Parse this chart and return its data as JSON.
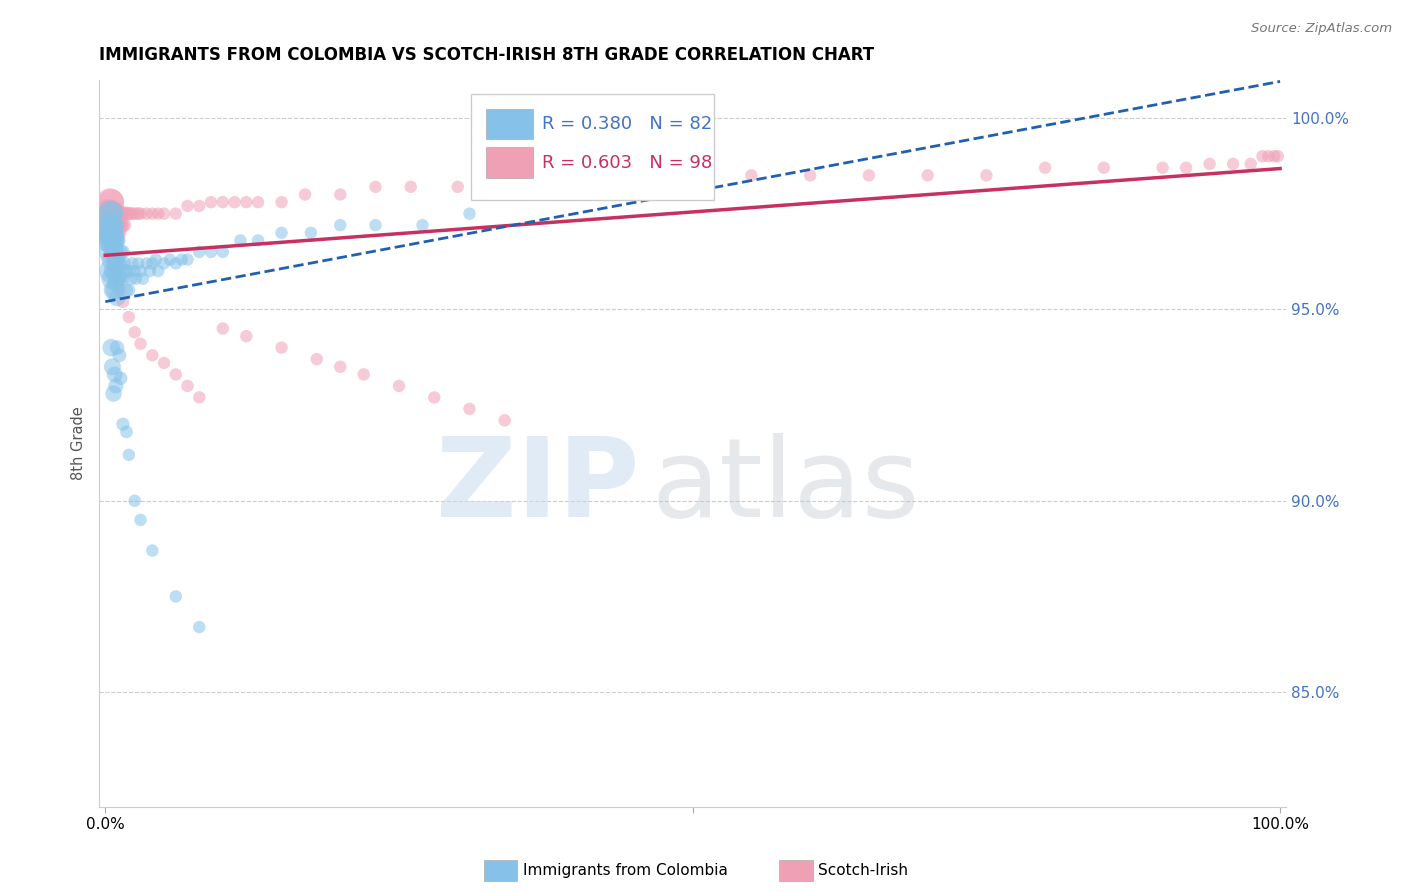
{
  "title": "IMMIGRANTS FROM COLOMBIA VS SCOTCH-IRISH 8TH GRADE CORRELATION CHART",
  "source": "Source: ZipAtlas.com",
  "ylabel": "8th Grade",
  "ytick_labels": [
    "85.0%",
    "90.0%",
    "95.0%",
    "100.0%"
  ],
  "ytick_values": [
    0.85,
    0.9,
    0.95,
    1.0
  ],
  "xlim": [
    0.0,
    1.0
  ],
  "ylim": [
    0.82,
    1.01
  ],
  "legend_blue_r": "R = 0.380",
  "legend_blue_n": "N = 82",
  "legend_pink_r": "R = 0.603",
  "legend_pink_n": "N = 98",
  "blue_color": "#85C1E8",
  "pink_color": "#F0A0B5",
  "blue_line_color": "#2060B0",
  "pink_line_color": "#C83060",
  "background_color": "#FFFFFF",
  "bottom_label_blue": "Immigrants from Colombia",
  "bottom_label_pink": "Scotch-Irish",
  "blue_x": [
    0.003,
    0.004,
    0.004,
    0.004,
    0.005,
    0.005,
    0.005,
    0.005,
    0.005,
    0.006,
    0.006,
    0.006,
    0.006,
    0.007,
    0.007,
    0.007,
    0.007,
    0.008,
    0.008,
    0.008,
    0.009,
    0.009,
    0.009,
    0.01,
    0.01,
    0.01,
    0.01,
    0.012,
    0.012,
    0.013,
    0.014,
    0.015,
    0.015,
    0.016,
    0.018,
    0.018,
    0.02,
    0.02,
    0.022,
    0.023,
    0.025,
    0.026,
    0.028,
    0.03,
    0.032,
    0.035,
    0.038,
    0.04,
    0.043,
    0.045,
    0.05,
    0.055,
    0.06,
    0.065,
    0.07,
    0.08,
    0.09,
    0.1,
    0.115,
    0.13,
    0.15,
    0.175,
    0.2,
    0.23,
    0.27,
    0.31,
    0.005,
    0.006,
    0.007,
    0.008,
    0.009,
    0.01,
    0.012,
    0.013,
    0.015,
    0.018,
    0.02,
    0.025,
    0.03,
    0.04,
    0.06,
    0.08
  ],
  "blue_y": [
    0.97,
    0.975,
    0.968,
    0.972,
    0.975,
    0.97,
    0.965,
    0.96,
    0.968,
    0.972,
    0.967,
    0.963,
    0.958,
    0.97,
    0.965,
    0.96,
    0.955,
    0.965,
    0.96,
    0.955,
    0.968,
    0.962,
    0.957,
    0.968,
    0.963,
    0.958,
    0.953,
    0.962,
    0.958,
    0.965,
    0.96,
    0.965,
    0.958,
    0.962,
    0.96,
    0.955,
    0.96,
    0.955,
    0.958,
    0.962,
    0.96,
    0.958,
    0.962,
    0.96,
    0.958,
    0.962,
    0.96,
    0.962,
    0.963,
    0.96,
    0.962,
    0.963,
    0.962,
    0.963,
    0.963,
    0.965,
    0.965,
    0.965,
    0.968,
    0.968,
    0.97,
    0.97,
    0.972,
    0.972,
    0.972,
    0.975,
    0.94,
    0.935,
    0.928,
    0.933,
    0.93,
    0.94,
    0.938,
    0.932,
    0.92,
    0.918,
    0.912,
    0.9,
    0.895,
    0.887,
    0.875,
    0.867
  ],
  "blue_sizes": [
    400,
    350,
    350,
    350,
    300,
    300,
    300,
    300,
    300,
    250,
    250,
    250,
    250,
    200,
    200,
    200,
    200,
    180,
    180,
    180,
    160,
    160,
    160,
    150,
    150,
    150,
    150,
    120,
    120,
    110,
    110,
    100,
    100,
    100,
    90,
    90,
    90,
    90,
    85,
    85,
    80,
    80,
    80,
    80,
    80,
    80,
    80,
    80,
    80,
    80,
    80,
    80,
    80,
    80,
    80,
    80,
    80,
    80,
    80,
    80,
    80,
    80,
    80,
    80,
    80,
    80,
    160,
    150,
    140,
    130,
    120,
    110,
    100,
    95,
    90,
    85,
    80,
    80,
    80,
    80,
    80,
    80
  ],
  "pink_x": [
    0.003,
    0.004,
    0.004,
    0.004,
    0.005,
    0.005,
    0.005,
    0.005,
    0.006,
    0.006,
    0.006,
    0.007,
    0.007,
    0.007,
    0.008,
    0.008,
    0.009,
    0.009,
    0.01,
    0.01,
    0.01,
    0.012,
    0.012,
    0.013,
    0.014,
    0.015,
    0.016,
    0.018,
    0.02,
    0.022,
    0.025,
    0.028,
    0.03,
    0.035,
    0.04,
    0.045,
    0.05,
    0.06,
    0.07,
    0.08,
    0.09,
    0.1,
    0.11,
    0.12,
    0.13,
    0.15,
    0.17,
    0.2,
    0.23,
    0.26,
    0.3,
    0.35,
    0.4,
    0.45,
    0.5,
    0.55,
    0.6,
    0.65,
    0.7,
    0.75,
    0.8,
    0.85,
    0.9,
    0.92,
    0.94,
    0.96,
    0.975,
    0.985,
    0.99,
    0.995,
    0.998,
    0.004,
    0.005,
    0.006,
    0.007,
    0.008,
    0.009,
    0.01,
    0.012,
    0.015,
    0.02,
    0.025,
    0.03,
    0.04,
    0.05,
    0.06,
    0.07,
    0.08,
    0.1,
    0.12,
    0.15,
    0.18,
    0.2,
    0.22,
    0.25,
    0.28,
    0.31,
    0.34
  ],
  "pink_y": [
    0.975,
    0.978,
    0.975,
    0.972,
    0.978,
    0.975,
    0.972,
    0.97,
    0.975,
    0.972,
    0.97,
    0.975,
    0.972,
    0.97,
    0.975,
    0.972,
    0.975,
    0.972,
    0.975,
    0.972,
    0.97,
    0.975,
    0.972,
    0.975,
    0.972,
    0.975,
    0.972,
    0.975,
    0.975,
    0.975,
    0.975,
    0.975,
    0.975,
    0.975,
    0.975,
    0.975,
    0.975,
    0.975,
    0.977,
    0.977,
    0.978,
    0.978,
    0.978,
    0.978,
    0.978,
    0.978,
    0.98,
    0.98,
    0.982,
    0.982,
    0.982,
    0.983,
    0.983,
    0.983,
    0.985,
    0.985,
    0.985,
    0.985,
    0.985,
    0.985,
    0.987,
    0.987,
    0.987,
    0.987,
    0.988,
    0.988,
    0.988,
    0.99,
    0.99,
    0.99,
    0.99,
    0.968,
    0.967,
    0.965,
    0.963,
    0.962,
    0.96,
    0.958,
    0.955,
    0.952,
    0.948,
    0.944,
    0.941,
    0.938,
    0.936,
    0.933,
    0.93,
    0.927,
    0.945,
    0.943,
    0.94,
    0.937,
    0.935,
    0.933,
    0.93,
    0.927,
    0.924,
    0.921
  ],
  "pink_sizes": [
    450,
    400,
    400,
    400,
    350,
    350,
    350,
    350,
    300,
    300,
    300,
    250,
    250,
    250,
    220,
    220,
    200,
    200,
    180,
    180,
    180,
    150,
    150,
    130,
    120,
    110,
    105,
    100,
    95,
    90,
    85,
    85,
    80,
    80,
    80,
    80,
    80,
    80,
    80,
    80,
    80,
    80,
    80,
    80,
    80,
    80,
    80,
    80,
    80,
    80,
    80,
    80,
    80,
    80,
    80,
    80,
    80,
    80,
    80,
    80,
    80,
    80,
    80,
    80,
    80,
    80,
    80,
    80,
    80,
    80,
    80,
    130,
    120,
    115,
    110,
    105,
    100,
    95,
    90,
    85,
    80,
    80,
    80,
    80,
    80,
    80,
    80,
    80,
    80,
    80,
    80,
    80,
    80,
    80,
    80,
    80,
    80,
    80
  ]
}
